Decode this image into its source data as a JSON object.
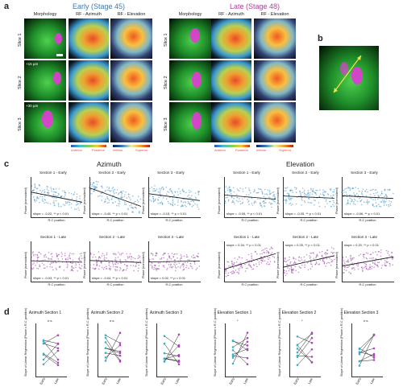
{
  "panel_a": {
    "label": "a",
    "early_title": "Early (Stage 45)",
    "late_title": "Late (Stage 48)",
    "columns": [
      "Morphology",
      "RF - Azimuth",
      "RF - Elevation"
    ],
    "rows": [
      "Slice 1",
      "Slice 2",
      "Slice 3"
    ],
    "depth_labels": [
      "+15 μm",
      "+30 μm"
    ],
    "colorbar_labels": [
      "Anterior",
      "Posterior",
      "Inferior",
      "Superior"
    ],
    "colors": {
      "early": "#3a7ab8",
      "late": "#b0449a"
    }
  },
  "panel_b": {
    "label": "b"
  },
  "panel_c": {
    "label": "c",
    "azimuth_title": "Azimuth",
    "elevation_title": "Elevation",
    "xlabel": "R-C position",
    "ylabel": "Phase (normalized)",
    "plots": [
      {
        "title": "Section 1 - Early",
        "group": "az",
        "stage": "early",
        "stat": "slope = -0.22, ** p < 0.01"
      },
      {
        "title": "Section 2 - Early",
        "group": "az",
        "stage": "early",
        "stat": "slope = -0.40, ** p < 0.01"
      },
      {
        "title": "Section 3 - Early",
        "group": "az",
        "stage": "early",
        "stat": "slope = -0.15, ** p < 0.01"
      },
      {
        "title": "Section 1 - Early",
        "group": "el",
        "stage": "early",
        "stat": "slope = -0.09, ** p < 0.01"
      },
      {
        "title": "Section 2 - Early",
        "group": "el",
        "stage": "early",
        "stat": "slope = -0.05, ** p < 0.01"
      },
      {
        "title": "Section 3 - Early",
        "group": "el",
        "stage": "early",
        "stat": "slope = -0.06, ** p < 0.01"
      },
      {
        "title": "Section 1 - Late",
        "group": "az",
        "stage": "late",
        "stat": "slope = -0.03, ** p < 0.01"
      },
      {
        "title": "Section 2 - Late",
        "group": "az",
        "stage": "late",
        "stat": "slope = -0.04, ** p < 0.01"
      },
      {
        "title": "Section 3 - Late",
        "group": "az",
        "stage": "late",
        "stat": "slope = 0.02, ** p < 0.01"
      },
      {
        "title": "Section 1 - Late",
        "group": "el",
        "stage": "late",
        "stat": "slope = 0.34, ** p < 0.01"
      },
      {
        "title": "Section 2 - Late",
        "group": "el",
        "stage": "late",
        "stat": "slope = 0.25, ** p < 0.01"
      },
      {
        "title": "Section 3 - Late",
        "group": "el",
        "stage": "late",
        "stat": "slope = 0.20, ** p < 0.01"
      }
    ]
  },
  "panel_d": {
    "label": "d",
    "ylabel": "Slope of Linear Regression (Phase x R-C position)",
    "xticks": [
      "Early",
      "Late"
    ],
    "plots": [
      {
        "title": "Azimuth Section 1",
        "sig": "n.s."
      },
      {
        "title": "Azimuth Section 2",
        "sig": "n.s."
      },
      {
        "title": "Azimuth Section 3",
        "sig": ""
      },
      {
        "title": "Elevation Section 1",
        "sig": "*"
      },
      {
        "title": "Elevation Section 2",
        "sig": "*"
      },
      {
        "title": "Elevation Section 3",
        "sig": "n.s."
      }
    ],
    "colors": {
      "early": "#3ab0c8",
      "late": "#b040c0",
      "line": "#222222"
    }
  }
}
